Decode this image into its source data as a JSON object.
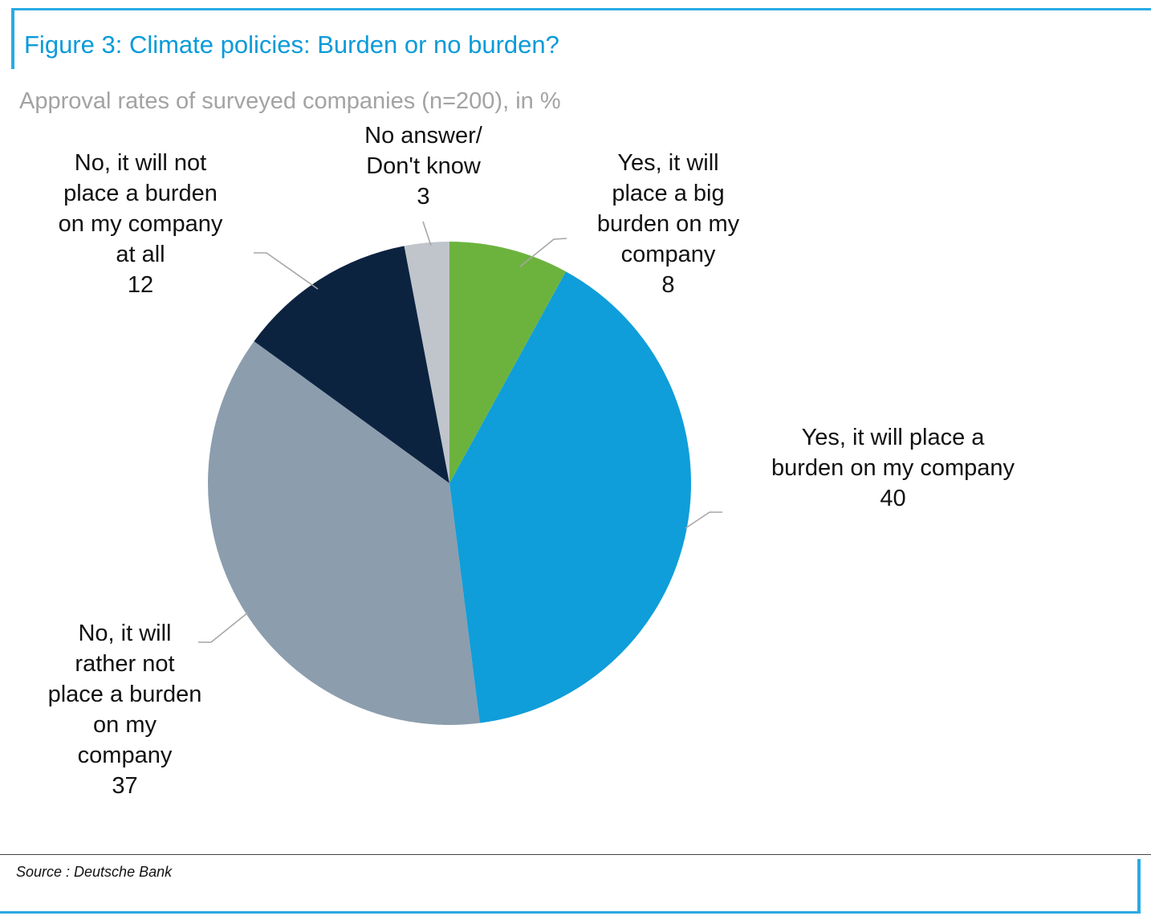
{
  "header": {
    "title": "Figure 3: Climate policies: Burden or no burden?",
    "subtitle": "Approval rates of surveyed companies (n=200), in %"
  },
  "footer": {
    "source": "Source : Deutsche Bank"
  },
  "colors": {
    "accent_blue": "#29abe2",
    "title_blue": "#0a9bd9",
    "subtitle_gray": "#a3a3a3",
    "leader_gray": "#a6a6a6"
  },
  "chart_data": {
    "type": "pie",
    "title": "Figure 3: Climate policies: Burden or no burden?",
    "subtitle": "Approval rates of surveyed companies (n=200), in %",
    "unit": "%",
    "sample_size": 200,
    "start_angle_deg": 0,
    "direction": "clockwise",
    "total": 100,
    "slices": [
      {
        "label": "Yes, it will place a big burden on my company",
        "value": 8,
        "color": "#6cb33e"
      },
      {
        "label": "Yes, it will place a burden on my company",
        "value": 40,
        "color": "#0f9ed9"
      },
      {
        "label": "No, it will rather not place a burden on my company",
        "value": 37,
        "color": "#8c9dad"
      },
      {
        "label": "No, it will not place a burden on my company at all",
        "value": 12,
        "color": "#0c2340"
      },
      {
        "label": "No answer/Don't know",
        "value": 3,
        "color": "#bfc5cb"
      }
    ]
  },
  "callouts": {
    "no_burden_at_all": {
      "text": "No, it will not\nplace a burden\non my company\nat all\n12"
    },
    "no_answer": {
      "text": "No answer/\nDon't know\n3"
    },
    "big_burden": {
      "text": "Yes, it will\nplace a big\nburden on my\ncompany\n8"
    },
    "burden": {
      "text": "Yes, it will place a\nburden on my company\n40"
    },
    "rather_not": {
      "text": "No, it will\nrather not\nplace a burden\non my\ncompany\n37"
    }
  }
}
